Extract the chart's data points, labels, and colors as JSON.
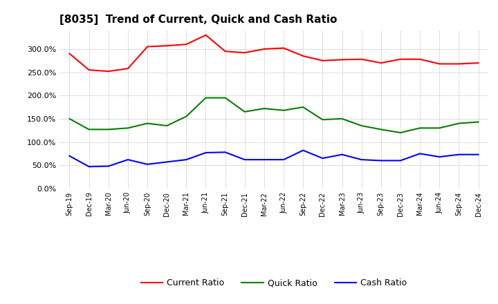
{
  "title": "[8035]  Trend of Current, Quick and Cash Ratio",
  "labels": [
    "Sep-19",
    "Dec-19",
    "Mar-20",
    "Jun-20",
    "Sep-20",
    "Dec-20",
    "Mar-21",
    "Jun-21",
    "Sep-21",
    "Dec-21",
    "Mar-22",
    "Jun-22",
    "Sep-22",
    "Dec-22",
    "Mar-23",
    "Jun-23",
    "Sep-23",
    "Dec-23",
    "Mar-24",
    "Jun-24",
    "Sep-24",
    "Dec-24"
  ],
  "current_ratio": [
    290,
    255,
    252,
    258,
    305,
    307,
    310,
    330,
    295,
    292,
    300,
    302,
    285,
    275,
    277,
    278,
    270,
    278,
    278,
    268,
    268,
    270
  ],
  "quick_ratio": [
    150,
    127,
    127,
    130,
    140,
    135,
    155,
    195,
    195,
    165,
    172,
    168,
    175,
    148,
    150,
    135,
    127,
    120,
    130,
    130,
    140,
    143
  ],
  "cash_ratio": [
    70,
    47,
    48,
    62,
    52,
    57,
    62,
    77,
    78,
    62,
    62,
    62,
    82,
    65,
    73,
    62,
    60,
    60,
    75,
    68,
    73,
    73
  ],
  "current_color": "#FF0000",
  "quick_color": "#008000",
  "cash_color": "#0000FF",
  "ylim": [
    0,
    340
  ],
  "yticks": [
    0,
    50,
    100,
    150,
    200,
    250,
    300
  ],
  "background_color": "#FFFFFF",
  "grid_color": "#999999"
}
